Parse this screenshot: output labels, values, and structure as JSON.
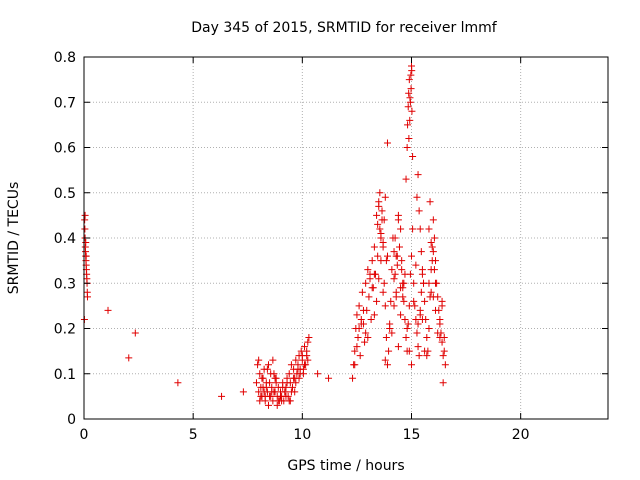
{
  "chart_data": {
    "type": "scatter",
    "title": "Day 345 of 2015, SRMTID for receiver lmmf",
    "xlabel": "GPS time / hours",
    "ylabel": "SRMTID / TECUs",
    "xlim": [
      0,
      24
    ],
    "ylim": [
      0,
      0.8
    ],
    "xticks": [
      0,
      5,
      10,
      15,
      20
    ],
    "xtick_labels": [
      "0",
      "5",
      "10",
      "15",
      "20"
    ],
    "yticks": [
      0,
      0.1,
      0.2,
      0.3,
      0.4,
      0.5,
      0.6,
      0.7,
      0.8
    ],
    "ytick_labels": [
      "0",
      "0.1",
      "0.2",
      "0.3",
      "0.4",
      "0.5",
      "0.6",
      "0.7",
      "0.8"
    ],
    "grid": true,
    "marker": "+",
    "color": "#e00000",
    "series": [
      {
        "name": "SRMTID",
        "x": [
          0.02,
          0.03,
          0.04,
          0.05,
          0.06,
          0.07,
          0.08,
          0.09,
          0.1,
          0.11,
          0.12,
          0.13,
          0.14,
          0.15,
          0.16,
          0.05,
          0.08,
          0.1,
          1.1,
          2.05,
          2.35,
          4.3,
          6.3,
          7.3,
          7.9,
          7.95,
          8.0,
          8.05,
          8.1,
          8.15,
          8.2,
          8.25,
          8.3,
          8.35,
          8.4,
          8.45,
          8.5,
          8.55,
          8.6,
          8.65,
          8.7,
          8.75,
          8.8,
          8.85,
          8.9,
          8.95,
          9.0,
          9.05,
          9.1,
          9.15,
          9.2,
          9.25,
          9.3,
          9.35,
          9.4,
          9.45,
          9.5,
          9.55,
          9.6,
          9.65,
          9.7,
          9.75,
          9.8,
          9.85,
          9.9,
          9.95,
          10.0,
          10.05,
          10.1,
          10.15,
          10.2,
          10.25,
          10.3,
          8.0,
          8.1,
          8.2,
          8.3,
          8.4,
          8.5,
          8.6,
          8.7,
          8.8,
          8.9,
          9.0,
          9.1,
          9.2,
          9.3,
          9.4,
          9.5,
          9.6,
          9.7,
          9.8,
          9.9,
          10.0,
          10.1,
          10.2,
          8.05,
          8.15,
          8.25,
          8.35,
          8.45,
          8.55,
          8.65,
          8.75,
          8.85,
          9.05,
          9.25,
          9.45,
          9.65,
          9.85,
          10.05,
          10.25,
          10.7,
          11.2,
          12.3,
          12.35,
          12.4,
          12.45,
          12.5,
          12.55,
          12.6,
          12.65,
          12.7,
          12.75,
          12.8,
          12.85,
          12.9,
          12.95,
          13.0,
          13.05,
          13.1,
          13.15,
          13.2,
          13.25,
          13.3,
          13.35,
          13.4,
          13.45,
          13.5,
          13.55,
          13.6,
          13.65,
          13.7,
          13.75,
          13.8,
          13.85,
          13.9,
          13.95,
          14.0,
          14.05,
          14.1,
          14.15,
          14.2,
          14.25,
          14.3,
          14.35,
          14.4,
          14.45,
          14.5,
          14.55,
          14.6,
          14.65,
          14.7,
          14.75,
          14.8,
          14.85,
          14.9,
          14.95,
          15.0,
          15.05,
          15.1,
          15.15,
          15.2,
          15.25,
          15.3,
          15.35,
          15.4,
          15.45,
          15.5,
          15.55,
          15.6,
          15.65,
          15.7,
          15.75,
          15.8,
          15.85,
          15.9,
          15.95,
          16.0,
          16.05,
          16.1,
          16.15,
          16.2,
          16.25,
          16.3,
          16.35,
          16.4,
          16.45,
          12.4,
          12.6,
          12.8,
          13.0,
          13.2,
          13.4,
          13.6,
          13.8,
          14.0,
          14.2,
          14.4,
          14.6,
          14.8,
          15.0,
          15.2,
          15.4,
          15.6,
          15.8,
          16.0,
          16.2,
          16.4,
          12.5,
          12.7,
          12.9,
          13.1,
          13.3,
          13.5,
          13.7,
          13.9,
          14.1,
          14.3,
          14.5,
          14.7,
          14.9,
          15.1,
          15.3,
          15.5,
          15.7,
          15.9,
          16.1,
          16.3,
          13.3,
          13.45,
          13.5,
          13.55,
          13.6,
          13.65,
          13.7,
          13.75,
          13.8,
          13.85,
          14.2,
          14.25,
          14.3,
          14.35,
          14.4,
          14.45,
          14.5,
          14.55,
          14.6,
          14.65,
          15.25,
          15.3,
          15.35,
          15.4,
          15.45,
          15.5,
          15.55,
          15.8,
          15.85,
          15.9,
          15.95,
          16.0,
          16.05,
          16.1,
          13.9,
          14.75,
          14.8,
          14.82,
          14.85,
          14.87,
          14.9,
          14.92,
          14.95,
          14.97,
          15.0,
          15.02,
          15.05,
          14.88,
          14.93,
          14.98,
          15.01,
          16.45,
          16.5,
          16.5,
          16.55,
          16.4,
          16.3
        ],
        "y": [
          0.22,
          0.44,
          0.42,
          0.4,
          0.38,
          0.37,
          0.36,
          0.35,
          0.34,
          0.33,
          0.32,
          0.31,
          0.3,
          0.28,
          0.27,
          0.45,
          0.39,
          0.36,
          0.24,
          0.135,
          0.19,
          0.08,
          0.05,
          0.06,
          0.08,
          0.12,
          0.06,
          0.1,
          0.05,
          0.09,
          0.07,
          0.11,
          0.04,
          0.08,
          0.06,
          0.12,
          0.05,
          0.1,
          0.07,
          0.13,
          0.06,
          0.09,
          0.08,
          0.05,
          0.07,
          0.04,
          0.06,
          0.05,
          0.08,
          0.04,
          0.06,
          0.07,
          0.09,
          0.05,
          0.1,
          0.08,
          0.12,
          0.07,
          0.11,
          0.09,
          0.13,
          0.1,
          0.12,
          0.14,
          0.11,
          0.15,
          0.13,
          0.1,
          0.16,
          0.12,
          0.14,
          0.17,
          0.18,
          0.13,
          0.07,
          0.09,
          0.05,
          0.11,
          0.08,
          0.06,
          0.1,
          0.09,
          0.04,
          0.05,
          0.07,
          0.06,
          0.08,
          0.04,
          0.06,
          0.09,
          0.08,
          0.11,
          0.1,
          0.14,
          0.12,
          0.15,
          0.04,
          0.05,
          0.06,
          0.07,
          0.03,
          0.05,
          0.04,
          0.06,
          0.03,
          0.04,
          0.05,
          0.04,
          0.06,
          0.09,
          0.11,
          0.13,
          0.1,
          0.09,
          0.09,
          0.12,
          0.15,
          0.2,
          0.23,
          0.18,
          0.25,
          0.14,
          0.22,
          0.28,
          0.21,
          0.17,
          0.3,
          0.24,
          0.33,
          0.27,
          0.31,
          0.22,
          0.35,
          0.29,
          0.38,
          0.32,
          0.45,
          0.36,
          0.48,
          0.42,
          0.4,
          0.44,
          0.39,
          0.3,
          0.25,
          0.18,
          0.12,
          0.15,
          0.2,
          0.26,
          0.33,
          0.4,
          0.37,
          0.32,
          0.28,
          0.36,
          0.44,
          0.38,
          0.42,
          0.35,
          0.3,
          0.26,
          0.22,
          0.18,
          0.15,
          0.21,
          0.25,
          0.32,
          0.36,
          0.42,
          0.3,
          0.25,
          0.22,
          0.19,
          0.16,
          0.14,
          0.24,
          0.28,
          0.32,
          0.3,
          0.26,
          0.22,
          0.18,
          0.15,
          0.2,
          0.27,
          0.33,
          0.38,
          0.44,
          0.4,
          0.35,
          0.3,
          0.27,
          0.24,
          0.22,
          0.19,
          0.17,
          0.14,
          0.12,
          0.2,
          0.24,
          0.18,
          0.29,
          0.26,
          0.35,
          0.13,
          0.21,
          0.25,
          0.16,
          0.29,
          0.2,
          0.12,
          0.34,
          0.23,
          0.15,
          0.3,
          0.27,
          0.19,
          0.25,
          0.16,
          0.21,
          0.19,
          0.32,
          0.23,
          0.31,
          0.28,
          0.36,
          0.19,
          0.27,
          0.23,
          0.32,
          0.15,
          0.26,
          0.21,
          0.22,
          0.14,
          0.28,
          0.24,
          0.18,
          0.32,
          0.43,
          0.47,
          0.5,
          0.41,
          0.46,
          0.38,
          0.44,
          0.49,
          0.35,
          0.31,
          0.4,
          0.36,
          0.34,
          0.45,
          0.38,
          0.29,
          0.33,
          0.27,
          0.3,
          0.49,
          0.54,
          0.46,
          0.42,
          0.37,
          0.33,
          0.3,
          0.42,
          0.48,
          0.39,
          0.35,
          0.37,
          0.33,
          0.3,
          0.61,
          0.53,
          0.6,
          0.65,
          0.69,
          0.72,
          0.75,
          0.66,
          0.7,
          0.76,
          0.78,
          0.68,
          0.58,
          0.62,
          0.71,
          0.73,
          0.77,
          0.08,
          0.15,
          0.18,
          0.12,
          0.26,
          0.21
        ]
      }
    ]
  }
}
